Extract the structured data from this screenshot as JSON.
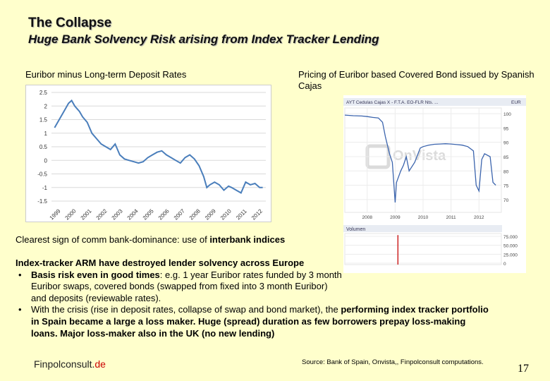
{
  "header": {
    "title": "The Collapse",
    "subtitle": "Huge Bank Solvency Risk arising from Index Tracker Lending"
  },
  "chart_data": [
    {
      "type": "line",
      "title": "Euribor minus Long-term Deposit Rates",
      "ylim": [
        -1.5,
        2.5
      ],
      "yticks": [
        "2.5",
        "2",
        "1.5",
        "1",
        "0.5",
        "0",
        "-0.5",
        "-1",
        "-1.5"
      ],
      "xticks": [
        "1999",
        "2000",
        "2001",
        "2002",
        "2003",
        "2004",
        "2005",
        "2006",
        "2007",
        "2008",
        "2009",
        "2010",
        "2011",
        "2012"
      ],
      "grid": true,
      "color": "#4a7ebb",
      "x": [
        1999.2,
        1999.5,
        1999.8,
        2000.1,
        2000.3,
        2000.5,
        2000.8,
        2001.0,
        2001.3,
        2001.6,
        2001.9,
        2002.2,
        2002.5,
        2002.8,
        2003.1,
        2003.4,
        2003.7,
        2004.0,
        2004.3,
        2004.6,
        2004.9,
        2005.2,
        2005.5,
        2005.8,
        2006.1,
        2006.4,
        2006.7,
        2007.0,
        2007.3,
        2007.6,
        2007.9,
        2008.2,
        2008.5,
        2008.8,
        2009.0,
        2009.2,
        2009.5,
        2009.8,
        2010.1,
        2010.4,
        2010.6,
        2010.9,
        2011.2,
        2011.5,
        2011.8,
        2012.1,
        2012.4,
        2012.6
      ],
      "y": [
        1.2,
        1.5,
        1.8,
        2.1,
        2.2,
        2.0,
        1.8,
        1.6,
        1.4,
        1.0,
        0.8,
        0.6,
        0.5,
        0.4,
        0.6,
        0.2,
        0.05,
        0.0,
        -0.05,
        -0.1,
        -0.05,
        0.1,
        0.2,
        0.3,
        0.35,
        0.2,
        0.1,
        0.0,
        -0.1,
        0.1,
        0.2,
        0.05,
        -0.2,
        -0.6,
        -1.0,
        -0.9,
        -0.8,
        -0.9,
        -1.1,
        -0.95,
        -1.0,
        -1.1,
        -1.2,
        -0.8,
        -0.9,
        -0.85,
        -1.0,
        -1.0
      ]
    },
    {
      "type": "line",
      "title": "Pricing of Euribor based Covered Bond issued by Spanish Cajas",
      "series_label": "AYT Cedulas Cajas X - F.T.A. EO-FLR Nts. ...",
      "currency_label": "EUR",
      "watermark": "OnVista",
      "yticks": [
        "100",
        "95",
        "90",
        "85",
        "80",
        "75",
        "70"
      ],
      "ylim": [
        67,
        102
      ],
      "xticks": [
        "2008",
        "2009",
        "2010",
        "2011",
        "2012"
      ],
      "xlim": [
        2007.2,
        2012.8
      ],
      "color": "#3b64ad",
      "x": [
        2007.2,
        2007.5,
        2007.8,
        2008.0,
        2008.2,
        2008.4,
        2008.55,
        2008.65,
        2008.8,
        2008.9,
        2009.0,
        2009.05,
        2009.2,
        2009.3,
        2009.4,
        2009.5,
        2009.7,
        2009.9,
        2010.0,
        2010.2,
        2010.4,
        2010.6,
        2010.8,
        2011.0,
        2011.2,
        2011.4,
        2011.6,
        2011.8,
        2011.9,
        2012.0,
        2012.1,
        2012.2,
        2012.4,
        2012.5,
        2012.6
      ],
      "y": [
        99.5,
        99.3,
        99.2,
        99.0,
        98.7,
        98.5,
        97.0,
        92.0,
        86.0,
        83.0,
        69.0,
        76.0,
        80.0,
        82.0,
        85.0,
        80.0,
        83.0,
        88.0,
        88.5,
        89.0,
        89.3,
        89.4,
        89.5,
        89.4,
        89.2,
        89.0,
        88.5,
        87.0,
        75.0,
        73.0,
        84.0,
        86.0,
        85.0,
        76.0,
        75.0
      ],
      "volume_panel": {
        "label": "Volumen",
        "yticks": [
          "75.000",
          "50.000",
          "25.000",
          "0"
        ],
        "spike_x": 2009.1,
        "spike_fraction": 0.95
      }
    }
  ],
  "body": {
    "clearest_pre": "Clearest sign of comm bank-dominance: use of ",
    "clearest_bold": "interbank indices",
    "heading": "Index-tracker ARM have destroyed lender solvency across Europe",
    "bullet_char": "•",
    "b1_bold": "Basis risk even in good times",
    "b1_rest": ": e.g. 1 year Euribor rates funded by 3 month Euribor swaps, covered bonds  (swapped from fixed into 3 month Euribor) and deposits (reviewable rates).",
    "b2_pre": "With the crisis (rise in deposit rates, collapse of swap and bond market), the ",
    "b2_bold": "performing index tracker portfolio in Spain became a large a loss maker. Huge (spread) duration as few borrowers prepay loss-making loans. Major loss-maker also in the UK (no new lending)"
  },
  "footer": {
    "logo_main": "Finpolconsult.",
    "logo_de": "de",
    "source": "Source: Bank of Spain, Onvista,, Finpolconsult computations.",
    "page": "17"
  }
}
